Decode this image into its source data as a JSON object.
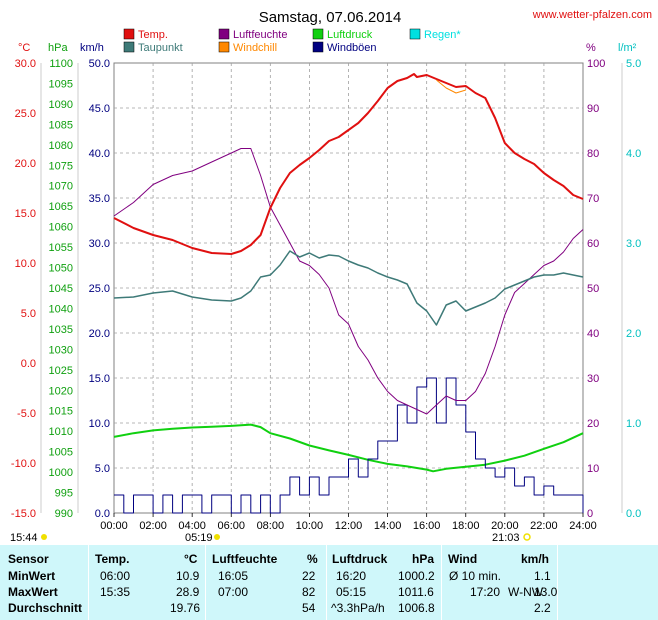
{
  "header": {
    "title": "Samstag, 07.06.2014",
    "site": "www.wetter-pfalzen.com"
  },
  "legend": [
    {
      "label": "Temp.",
      "color": "#e01010"
    },
    {
      "label": "Luftfeuchte",
      "color": "#800080"
    },
    {
      "label": "Luftdruck",
      "color": "#10d010"
    },
    {
      "label": "Regen*",
      "color": "#00e0e0"
    },
    {
      "label": "Taupunkt",
      "color": "#3e7a78"
    },
    {
      "label": "Windchill",
      "color": "#ff8800"
    },
    {
      "label": "Windböen",
      "color": "#000080"
    }
  ],
  "axis_units": {
    "temp": "°C",
    "pressure": "hPa",
    "wind": "km/h",
    "humidity": "%",
    "rain": "l/m²"
  },
  "sun": {
    "rise_label": "15:44",
    "sunrise": "05:19",
    "sunset": "21:03"
  },
  "chart_data": {
    "type": "line",
    "x_unit": "hour",
    "xlim": [
      0,
      24
    ],
    "x_ticks": [
      "00:00",
      "02:00",
      "04:00",
      "06:00",
      "08:00",
      "10:00",
      "12:00",
      "14:00",
      "16:00",
      "18:00",
      "20:00",
      "22:00",
      "24:00"
    ],
    "axes": {
      "temp": {
        "min": -15,
        "max": 30,
        "ticks": [
          "30.0",
          "25.0",
          "20.0",
          "15.0",
          "10.0",
          "5.0",
          "0.0",
          "-5.0",
          "-10.0",
          "-15.0"
        ]
      },
      "pressure": {
        "min": 990,
        "max": 1100,
        "ticks": [
          "1100",
          "1095",
          "1090",
          "1085",
          "1080",
          "1075",
          "1070",
          "1065",
          "1060",
          "1055",
          "1050",
          "1045",
          "1040",
          "1035",
          "1030",
          "1025",
          "1020",
          "1015",
          "1010",
          "1005",
          "1000",
          "995",
          "990"
        ]
      },
      "wind": {
        "min": 0,
        "max": 50,
        "ticks": [
          "50.0",
          "45.0",
          "40.0",
          "35.0",
          "30.0",
          "25.0",
          "20.0",
          "15.0",
          "10.0",
          "5.0",
          "0.0"
        ]
      },
      "humidity": {
        "min": 0,
        "max": 100,
        "ticks": [
          "100",
          "90",
          "80",
          "70",
          "60",
          "50",
          "40",
          "30",
          "20",
          "10",
          "0"
        ]
      },
      "rain": {
        "min": 0,
        "max": 5,
        "ticks": [
          "5.0",
          "4.0",
          "3.0",
          "2.0",
          "1.0",
          "0.0"
        ]
      }
    },
    "series": [
      {
        "name": "Temp.",
        "axis": "temp",
        "color": "#e01010",
        "x": [
          0,
          1,
          2,
          3,
          4,
          5,
          6,
          6.5,
          7,
          7.5,
          8,
          8.5,
          9,
          9.5,
          10,
          10.5,
          11,
          11.5,
          12,
          12.5,
          13,
          13.5,
          14,
          14.5,
          15,
          15.35,
          15.5,
          16,
          16.5,
          17,
          17.5,
          18,
          18.5,
          19,
          19.5,
          20,
          20.5,
          21,
          21.5,
          22,
          22.5,
          23,
          23.5,
          24
        ],
        "values": [
          14.5,
          13.5,
          12.8,
          12.3,
          11.5,
          11.0,
          10.9,
          11.2,
          11.8,
          12.8,
          15.5,
          17.5,
          19.0,
          19.8,
          20.5,
          21.3,
          22.2,
          22.6,
          23.3,
          24.0,
          25.0,
          26.2,
          27.5,
          28.2,
          28.5,
          28.9,
          28.6,
          28.8,
          28.4,
          28.0,
          27.6,
          27.7,
          27.0,
          26.5,
          24.5,
          22.0,
          21.0,
          20.4,
          19.9,
          19.0,
          18.3,
          17.7,
          16.8,
          16.4
        ]
      },
      {
        "name": "Taupunkt",
        "axis": "temp",
        "color": "#3e7a78",
        "x": [
          0,
          1,
          2,
          3,
          4,
          5,
          6,
          6.5,
          7,
          7.5,
          8,
          8.5,
          9,
          9.5,
          10,
          10.5,
          11,
          11.5,
          12,
          12.5,
          13,
          13.5,
          14,
          14.5,
          15,
          15.5,
          16,
          16.5,
          17,
          17.5,
          18,
          18.5,
          19,
          19.5,
          20,
          20.5,
          21,
          21.5,
          22,
          22.5,
          23,
          23.5,
          24
        ],
        "values": [
          6.5,
          6.6,
          7.0,
          7.2,
          6.6,
          6.3,
          6.2,
          6.5,
          7.2,
          8.6,
          8.8,
          9.8,
          11.2,
          10.6,
          11.0,
          10.5,
          10.8,
          10.7,
          10.2,
          9.8,
          9.5,
          9.0,
          8.6,
          8.3,
          7.9,
          6.0,
          5.2,
          3.8,
          5.8,
          6.2,
          5.2,
          5.6,
          6.0,
          6.5,
          7.4,
          7.8,
          8.2,
          8.6,
          8.8,
          8.8,
          9.0,
          8.8,
          8.6
        ]
      },
      {
        "name": "Luftfeuchte",
        "axis": "humidity",
        "color": "#800080",
        "x": [
          0,
          1,
          2,
          3,
          4,
          5,
          6,
          6.5,
          7,
          7.5,
          8,
          8.5,
          9,
          9.5,
          10,
          10.5,
          11,
          11.5,
          12,
          12.5,
          13,
          13.5,
          14,
          14.5,
          15,
          15.5,
          16,
          16.5,
          17,
          17.5,
          18,
          18.5,
          19,
          19.5,
          20,
          20.5,
          21,
          21.5,
          22,
          22.5,
          23,
          23.5,
          24
        ],
        "values": [
          66,
          69,
          73,
          75,
          76,
          78,
          80,
          81,
          81,
          75,
          68,
          64,
          60,
          56,
          55,
          53,
          50,
          44,
          42,
          37,
          34,
          30,
          27,
          25,
          24,
          23,
          22,
          24,
          26,
          25,
          25,
          27,
          31,
          37,
          44,
          49,
          51,
          53,
          55,
          56,
          58,
          61,
          63
        ]
      },
      {
        "name": "Luftdruck",
        "axis": "pressure",
        "color": "#10d010",
        "x": [
          0,
          1,
          2,
          3,
          4,
          5,
          6,
          7,
          7.5,
          8,
          9,
          10,
          11,
          12,
          13,
          14,
          15,
          16,
          16.33,
          17,
          18,
          19,
          20,
          21,
          22,
          23,
          24
        ],
        "values": [
          1008.6,
          1009.5,
          1010.2,
          1010.6,
          1010.9,
          1011.1,
          1011.3,
          1011.6,
          1011.0,
          1009.5,
          1008.2,
          1006.5,
          1005.3,
          1004.2,
          1003.0,
          1002.0,
          1001.4,
          1000.6,
          1000.2,
          1000.8,
          1001.3,
          1001.8,
          1002.8,
          1004.0,
          1005.7,
          1007.3,
          1009.5
        ]
      },
      {
        "name": "Windchill",
        "axis": "temp",
        "color": "#ff8800",
        "x": [
          16.5,
          17,
          17.5,
          18
        ],
        "values": [
          28.3,
          27.5,
          27.0,
          27.3
        ]
      },
      {
        "name": "Windböen",
        "axis": "wind",
        "color": "#000080",
        "style": "step",
        "x": [
          0,
          0.5,
          1,
          1.5,
          2,
          2.5,
          3,
          3.5,
          4,
          4.5,
          5,
          5.5,
          6,
          6.5,
          7,
          7.5,
          8,
          8.5,
          9,
          9.5,
          10,
          10.5,
          11,
          11.5,
          12,
          12.5,
          13,
          13.5,
          14,
          14.5,
          15,
          15.5,
          16,
          16.5,
          17,
          17.5,
          18,
          18.5,
          19,
          19.5,
          20,
          20.5,
          21,
          21.5,
          22,
          22.5,
          23,
          23.5,
          24
        ],
        "values": [
          2,
          0,
          2,
          2,
          0,
          2,
          0,
          2,
          2,
          0,
          2,
          2,
          0,
          2,
          0,
          2,
          0,
          2,
          4,
          2,
          4,
          2,
          4,
          4,
          6,
          4,
          6,
          8,
          8,
          12,
          10,
          14,
          15,
          10,
          15,
          12,
          9,
          6,
          5,
          4,
          5,
          3,
          4,
          2,
          3,
          2,
          2,
          2,
          0
        ]
      }
    ]
  },
  "stats": {
    "headers": {
      "sensor": "Sensor",
      "temp": "Temp.",
      "temp_unit": "°C",
      "hum": "Luftfeuchte",
      "hum_unit": "%",
      "press": "Luftdruck",
      "press_unit": "hPa",
      "wind": "Wind",
      "wind_unit": "km/h"
    },
    "rows": [
      {
        "label": "MinWert",
        "temp_time": "06:00",
        "temp_val": "10.9",
        "hum_time": "16:05",
        "hum_val": "22",
        "press_time": "16:20",
        "press_val": "1000.2",
        "wind_time": "Ø 10 min.",
        "wind_dir": "",
        "wind_val": "1.1"
      },
      {
        "label": "MaxWert",
        "temp_time": "15:35",
        "temp_val": "28.9",
        "hum_time": "07:00",
        "hum_val": "82",
        "press_time": "05:15",
        "press_val": "1011.6",
        "wind_time": "17:20",
        "wind_dir": "W-NW",
        "wind_val": "13.0"
      },
      {
        "label": "Durchschnitt",
        "temp_time": "",
        "temp_val": "19.76",
        "hum_time": "",
        "hum_val": "54",
        "press_time": "^3.3hPa/h",
        "press_val": "1006.8",
        "wind_time": "",
        "wind_dir": "",
        "wind_val": "2.2"
      }
    ]
  }
}
